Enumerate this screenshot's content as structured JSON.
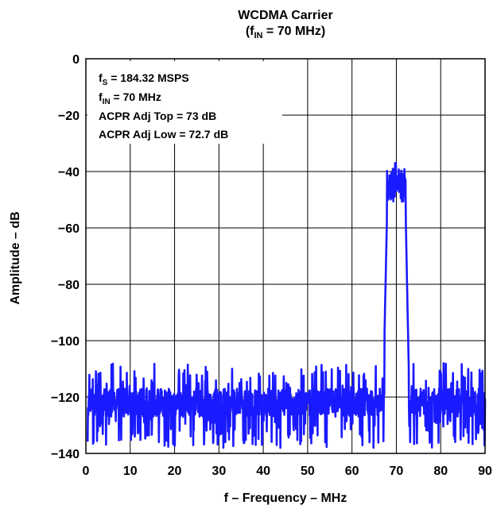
{
  "chart_data": {
    "type": "line",
    "title": {
      "line1": "WCDMA Carrier",
      "line2_pre": "(f",
      "line2_sub": "IN",
      "line2_post": " = 70 MHz)"
    },
    "xlabel": "f – Frequency – MHz",
    "ylabel": "Amplitude – dB",
    "xlim": [
      0,
      90
    ],
    "ylim": [
      -140,
      0
    ],
    "xticks": [
      0,
      10,
      20,
      30,
      40,
      50,
      60,
      70,
      80,
      90
    ],
    "yticks": [
      0,
      -20,
      -40,
      -60,
      -80,
      -100,
      -120,
      -140
    ],
    "ytick_labels": [
      "0",
      "−20",
      "−40",
      "−60",
      "−80",
      "−100",
      "−120",
      "−140"
    ],
    "grid": true,
    "series_color": "#1a1aff",
    "annotations": [
      {
        "pre": "f",
        "sub": "S",
        "post": " = 184.32 MSPS"
      },
      {
        "pre": "f",
        "sub": "IN",
        "post": " = 70 MHz"
      },
      {
        "pre": "ACPR Adj Top = 73 dB",
        "sub": "",
        "post": ""
      },
      {
        "pre": "ACPR Adj Low = 72.7 dB",
        "sub": "",
        "post": ""
      }
    ],
    "series": [
      {
        "noise_floor_db": -122,
        "noise_min_db": -138,
        "noise_max_db": -108,
        "carrier_start_mhz": 67.5,
        "carrier_end_mhz": 72.5,
        "carrier_level_db": -45,
        "carrier_peak_db": -37,
        "carrier_peak_mhz": 69.8
      }
    ]
  }
}
